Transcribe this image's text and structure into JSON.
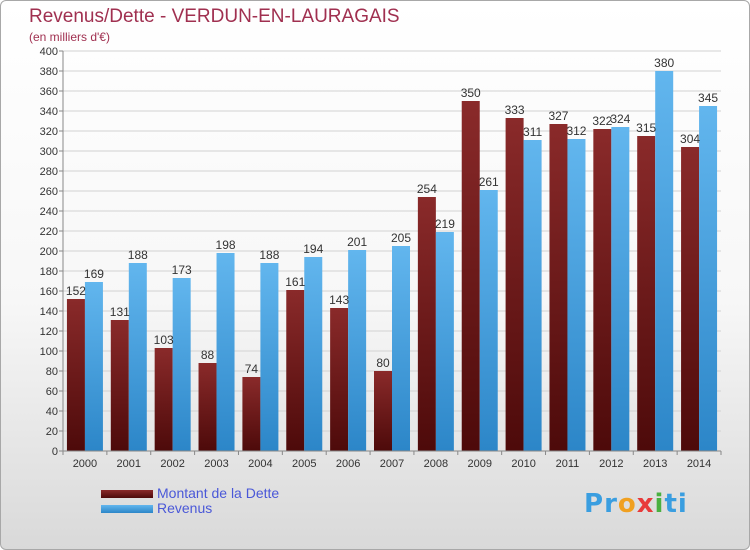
{
  "header": {
    "title": "Revenus/Dette - VERDUN-EN-LAURAGAIS",
    "subtitle": "(en milliers d'€)"
  },
  "legend": {
    "debt_label": "Montant de la Dette",
    "revenue_label": "Revenus"
  },
  "logo": {
    "text": "Proxiti",
    "letters": [
      "P",
      "r",
      "o",
      "x",
      "i",
      "t",
      "i"
    ],
    "colors": [
      "#3a9ee0",
      "#3a9ee0",
      "#f0a020",
      "#e83a3a",
      "#4ab040",
      "#3a9ee0",
      "#3a9ee0"
    ]
  },
  "colors": {
    "debt_top": "#8a2a2a",
    "debt_bottom": "#4d0a0a",
    "revenue_top": "#62b6ee",
    "revenue_bottom": "#2c86c8",
    "title": "#a03050",
    "legend_text": "#4a58d8"
  },
  "chart_data": {
    "type": "bar",
    "title": "Revenus/Dette - VERDUN-EN-LAURAGAIS",
    "subtitle": "(en milliers d'€)",
    "categories": [
      "2000",
      "2001",
      "2002",
      "2003",
      "2004",
      "2005",
      "2006",
      "2007",
      "2008",
      "2009",
      "2010",
      "2011",
      "2012",
      "2013",
      "2014"
    ],
    "series": [
      {
        "name": "Montant de la Dette",
        "values": [
          152,
          131,
          103,
          88,
          74,
          161,
          143,
          80,
          254,
          350,
          333,
          327,
          322,
          315,
          304
        ]
      },
      {
        "name": "Revenus",
        "values": [
          169,
          188,
          173,
          198,
          188,
          194,
          201,
          205,
          219,
          261,
          311,
          312,
          324,
          380,
          345
        ]
      }
    ],
    "ylim": [
      0,
      400
    ],
    "ytick_step": 20,
    "grid": true,
    "legend_position": "bottom-left"
  }
}
